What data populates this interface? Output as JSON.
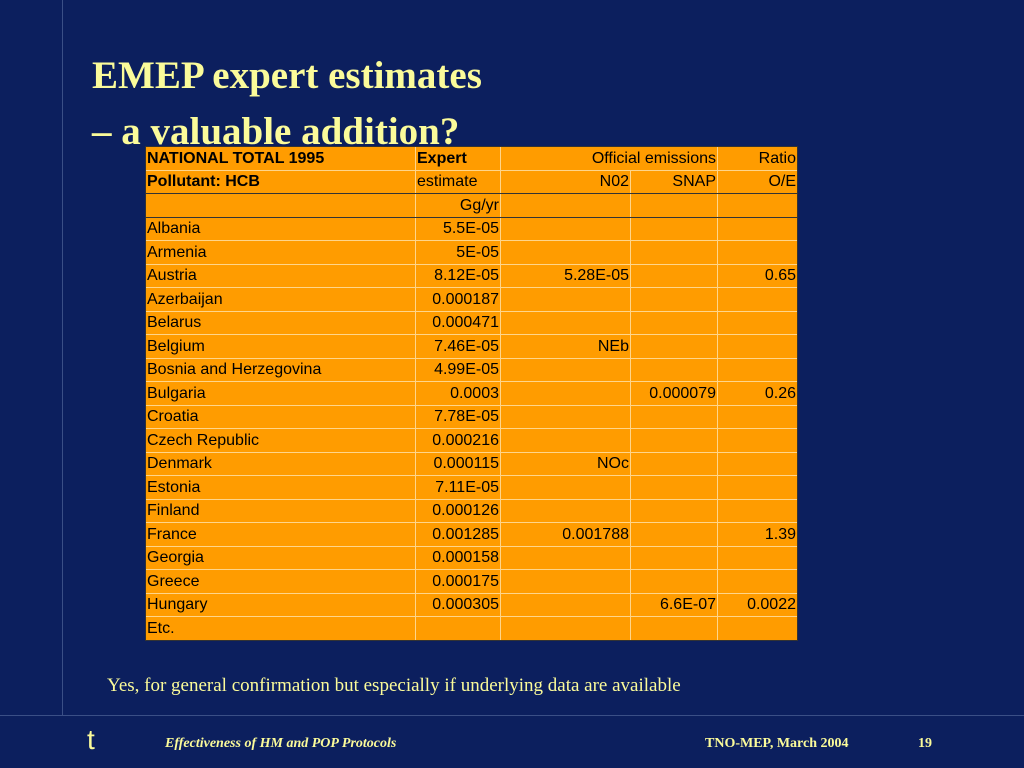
{
  "slide": {
    "title_line1": "EMEP expert estimates",
    "title_line2": "– a valuable addition?",
    "note": "Yes, for general confirmation but especially if underlying data are available",
    "logo": "t",
    "footer_left": "Effectiveness of HM and POP Protocols",
    "footer_right": "TNO-MEP, March 2004",
    "page_number": "19"
  },
  "table": {
    "header1": {
      "c1": "NATIONAL TOTAL 1995",
      "c2": "Expert",
      "c3": "Official emissions",
      "c5": "Ratio"
    },
    "header2": {
      "c1": "Pollutant: HCB",
      "c2": "estimate",
      "c3": "N02",
      "c4": "SNAP",
      "c5": "O/E"
    },
    "unit_row": {
      "c2": "Gg/yr"
    },
    "rows": [
      {
        "country": "Albania",
        "expert": "5.5E-05",
        "n02": "",
        "snap": "",
        "ratio": ""
      },
      {
        "country": "Armenia",
        "expert": "5E-05",
        "n02": "",
        "snap": "",
        "ratio": ""
      },
      {
        "country": "Austria",
        "expert": "8.12E-05",
        "n02": "5.28E-05",
        "snap": "",
        "ratio": "0.65"
      },
      {
        "country": "Azerbaijan",
        "expert": "0.000187",
        "n02": "",
        "snap": "",
        "ratio": ""
      },
      {
        "country": "Belarus",
        "expert": "0.000471",
        "n02": "",
        "snap": "",
        "ratio": ""
      },
      {
        "country": "Belgium",
        "expert": "7.46E-05",
        "n02": "NEb",
        "snap": "",
        "ratio": ""
      },
      {
        "country": "Bosnia and Herzegovina",
        "expert": "4.99E-05",
        "n02": "",
        "snap": "",
        "ratio": ""
      },
      {
        "country": "Bulgaria",
        "expert": "0.0003",
        "n02": "",
        "snap": "0.000079",
        "ratio": "0.26"
      },
      {
        "country": "Croatia",
        "expert": "7.78E-05",
        "n02": "",
        "snap": "",
        "ratio": ""
      },
      {
        "country": "Czech Republic",
        "expert": "0.000216",
        "n02": "",
        "snap": "",
        "ratio": ""
      },
      {
        "country": "Denmark",
        "expert": "0.000115",
        "n02": "NOc",
        "snap": "",
        "ratio": ""
      },
      {
        "country": "Estonia",
        "expert": "7.11E-05",
        "n02": "",
        "snap": "",
        "ratio": ""
      },
      {
        "country": "Finland",
        "expert": "0.000126",
        "n02": "",
        "snap": "",
        "ratio": ""
      },
      {
        "country": "France",
        "expert": "0.001285",
        "n02": "0.001788",
        "snap": "",
        "ratio": "1.39"
      },
      {
        "country": "Georgia",
        "expert": "0.000158",
        "n02": "",
        "snap": "",
        "ratio": ""
      },
      {
        "country": "Greece",
        "expert": "0.000175",
        "n02": "",
        "snap": "",
        "ratio": ""
      },
      {
        "country": "Hungary",
        "expert": "0.000305",
        "n02": "",
        "snap": "6.6E-07",
        "ratio": "0.0022"
      },
      {
        "country": "Etc.",
        "expert": "",
        "n02": "",
        "snap": "",
        "ratio": ""
      }
    ]
  },
  "colors": {
    "background": "#0c1f5e",
    "title": "#fbfb9a",
    "table_fill": "#ff9c00"
  }
}
